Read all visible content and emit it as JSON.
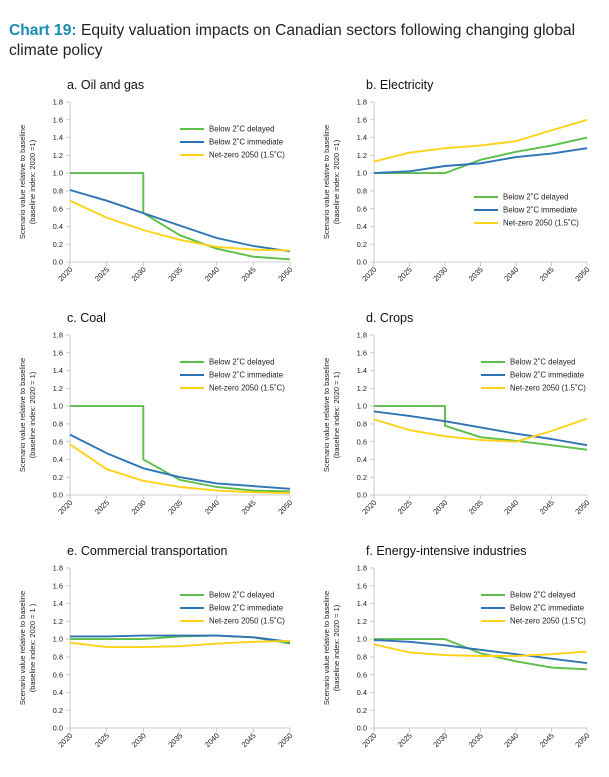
{
  "title": {
    "lead": "Chart 19:",
    "text": "Equity valuation impacts on Canadian sectors following changing global climate policy"
  },
  "colors": {
    "delayed": "#5cbf47",
    "immediate": "#2e74b5",
    "netzero": "#ffd21a",
    "axis": "#bfbfbf"
  },
  "chart_data": [
    {
      "type": "line",
      "title": "a. Oil and gas",
      "ylabel": [
        "Scenario value relative to baseline",
        "(baseline index: 2020 =1)"
      ],
      "x": [
        2020,
        2025,
        2030,
        2035,
        2040,
        2045,
        2050
      ],
      "ylim": [
        0,
        1.8
      ],
      "yticks": [
        "0.0",
        "0.2",
        "0.4",
        "0.6",
        "0.8",
        "1.0",
        "1.2",
        "1.4",
        "1.6",
        "1.8"
      ],
      "legend_position": "top-right",
      "series": [
        {
          "name": "Below 2˚C delayed",
          "x": [
            2020,
            2025,
            2030,
            2030,
            2035,
            2040,
            2045,
            2050
          ],
          "values": [
            1.0,
            1.0,
            1.0,
            0.55,
            0.3,
            0.15,
            0.06,
            0.03
          ]
        },
        {
          "name": "Below 2˚C immediate",
          "x": [
            2020,
            2025,
            2030,
            2035,
            2040,
            2045,
            2050
          ],
          "values": [
            0.81,
            0.69,
            0.55,
            0.41,
            0.27,
            0.18,
            0.12
          ]
        },
        {
          "name": "Net-zero 2050 (1.5˚C)",
          "x": [
            2020,
            2025,
            2030,
            2035,
            2040,
            2045,
            2050
          ],
          "values": [
            0.69,
            0.5,
            0.36,
            0.25,
            0.17,
            0.14,
            0.13
          ]
        }
      ]
    },
    {
      "type": "line",
      "title": "b. Electricity",
      "ylabel": [
        "Scenario value relative to baseline",
        "(baseline index: 2020 =1)"
      ],
      "x": [
        2020,
        2025,
        2030,
        2035,
        2040,
        2045,
        2050
      ],
      "ylim": [
        0,
        1.8
      ],
      "yticks": [
        "0.0",
        "0.2",
        "0.4",
        "0.6",
        "0.8",
        "1.0",
        "1.2",
        "1.4",
        "1.6",
        "1.8"
      ],
      "legend_position": "middle-right",
      "series": [
        {
          "name": "Below 2˚C delayed",
          "x": [
            2020,
            2025,
            2030,
            2035,
            2040,
            2045,
            2050
          ],
          "values": [
            1.0,
            1.0,
            1.0,
            1.15,
            1.24,
            1.31,
            1.4
          ]
        },
        {
          "name": "Below 2˚C immediate",
          "x": [
            2020,
            2025,
            2030,
            2035,
            2040,
            2045,
            2050
          ],
          "values": [
            1.0,
            1.02,
            1.08,
            1.11,
            1.18,
            1.22,
            1.28
          ]
        },
        {
          "name": "Net-zero 2050 (1.5˚C)",
          "x": [
            2020,
            2025,
            2030,
            2035,
            2040,
            2045,
            2050
          ],
          "values": [
            1.13,
            1.23,
            1.28,
            1.31,
            1.36,
            1.48,
            1.6
          ]
        }
      ]
    },
    {
      "type": "line",
      "title": "c. Coal",
      "ylabel": [
        "Scenario value relative to baseline",
        "(baseline index: 2020 = 1)"
      ],
      "x": [
        2020,
        2025,
        2030,
        2035,
        2040,
        2045,
        2050
      ],
      "ylim": [
        0,
        1.8
      ],
      "yticks": [
        "0.0",
        "0.2",
        "0.4",
        "0.6",
        "0.8",
        "1.0",
        "1.2",
        "1.4",
        "1.6",
        "1.8"
      ],
      "legend_position": "top-right",
      "series": [
        {
          "name": "Below 2˚C delayed",
          "x": [
            2020,
            2025,
            2030,
            2030,
            2035,
            2040,
            2045,
            2050
          ],
          "values": [
            1.0,
            1.0,
            1.0,
            0.4,
            0.17,
            0.09,
            0.05,
            0.04
          ]
        },
        {
          "name": "Below 2˚C immediate",
          "x": [
            2020,
            2025,
            2030,
            2035,
            2040,
            2045,
            2050
          ],
          "values": [
            0.68,
            0.47,
            0.3,
            0.2,
            0.13,
            0.1,
            0.07
          ]
        },
        {
          "name": "Net-zero 2050 (1.5˚C)",
          "x": [
            2020,
            2025,
            2030,
            2035,
            2040,
            2045,
            2050
          ],
          "values": [
            0.57,
            0.29,
            0.16,
            0.09,
            0.05,
            0.03,
            0.02
          ]
        }
      ]
    },
    {
      "type": "line",
      "title": "d. Crops",
      "ylabel": [
        "Scenario value relative to baseline",
        "(baseline index: 2020 = 1)"
      ],
      "x": [
        2020,
        2025,
        2030,
        2035,
        2040,
        2045,
        2050
      ],
      "ylim": [
        0,
        1.8
      ],
      "yticks": [
        "0.0",
        "0.2",
        "0.4",
        "0.6",
        "0.8",
        "1.0",
        "1.2",
        "1.4",
        "1.6",
        "1.8"
      ],
      "legend_position": "top-right",
      "series": [
        {
          "name": "Below 2˚C delayed",
          "x": [
            2020,
            2025,
            2030,
            2030,
            2035,
            2040,
            2045,
            2050
          ],
          "values": [
            1.0,
            1.0,
            1.0,
            0.78,
            0.65,
            0.61,
            0.56,
            0.51
          ]
        },
        {
          "name": "Below 2˚C immediate",
          "x": [
            2020,
            2025,
            2030,
            2035,
            2040,
            2045,
            2050
          ],
          "values": [
            0.94,
            0.89,
            0.83,
            0.76,
            0.69,
            0.63,
            0.56
          ]
        },
        {
          "name": "Net-zero 2050 (1.5˚C)",
          "x": [
            2020,
            2025,
            2030,
            2035,
            2040,
            2045,
            2050
          ],
          "values": [
            0.85,
            0.73,
            0.66,
            0.62,
            0.6,
            0.72,
            0.86
          ]
        }
      ]
    },
    {
      "type": "line",
      "title": "e. Commercial transportation",
      "ylabel": [
        "Scenario value relative to baseline",
        "(baseline index: 2020 = 1 )"
      ],
      "x": [
        2020,
        2025,
        2030,
        2035,
        2040,
        2045,
        2050
      ],
      "ylim": [
        0,
        1.8
      ],
      "yticks": [
        "0.0",
        "0.2",
        "0.4",
        "0.6",
        "0.8",
        "1.0",
        "1.2",
        "1.4",
        "1.6",
        "1.8"
      ],
      "legend_position": "top-right",
      "series": [
        {
          "name": "Below 2˚C delayed",
          "x": [
            2020,
            2025,
            2030,
            2035,
            2040,
            2045,
            2050
          ],
          "values": [
            1.0,
            1.0,
            1.0,
            1.03,
            1.04,
            1.02,
            0.95
          ]
        },
        {
          "name": "Below 2˚C immediate",
          "x": [
            2020,
            2025,
            2030,
            2035,
            2040,
            2045,
            2050
          ],
          "values": [
            1.03,
            1.03,
            1.04,
            1.04,
            1.04,
            1.02,
            0.97
          ]
        },
        {
          "name": "Net-zero 2050 (1.5˚C)",
          "x": [
            2020,
            2025,
            2030,
            2035,
            2040,
            2045,
            2050
          ],
          "values": [
            0.96,
            0.91,
            0.91,
            0.92,
            0.95,
            0.97,
            0.98
          ]
        }
      ]
    },
    {
      "type": "line",
      "title": "f. Energy-intensive industries",
      "ylabel": [
        "Scenario value relative to baseline",
        "(baseline index: 2020 = 1)"
      ],
      "x": [
        2020,
        2025,
        2030,
        2035,
        2040,
        2045,
        2050
      ],
      "ylim": [
        0,
        1.8
      ],
      "yticks": [
        "0.0",
        "0.2",
        "0.4",
        "0.6",
        "0.8",
        "1.0",
        "1.2",
        "1.4",
        "1.6",
        "1.8"
      ],
      "legend_position": "top-right",
      "series": [
        {
          "name": "Below 2˚C delayed",
          "x": [
            2020,
            2025,
            2030,
            2035,
            2040,
            2045,
            2050
          ],
          "values": [
            1.0,
            1.0,
            1.0,
            0.84,
            0.75,
            0.68,
            0.66
          ]
        },
        {
          "name": "Below 2˚C immediate",
          "x": [
            2020,
            2025,
            2030,
            2035,
            2040,
            2045,
            2050
          ],
          "values": [
            0.99,
            0.97,
            0.93,
            0.88,
            0.83,
            0.78,
            0.73
          ]
        },
        {
          "name": "Net-zero 2050 (1.5˚C)",
          "x": [
            2020,
            2025,
            2030,
            2035,
            2040,
            2045,
            2050
          ],
          "values": [
            0.94,
            0.85,
            0.82,
            0.81,
            0.81,
            0.83,
            0.86
          ]
        }
      ]
    }
  ]
}
